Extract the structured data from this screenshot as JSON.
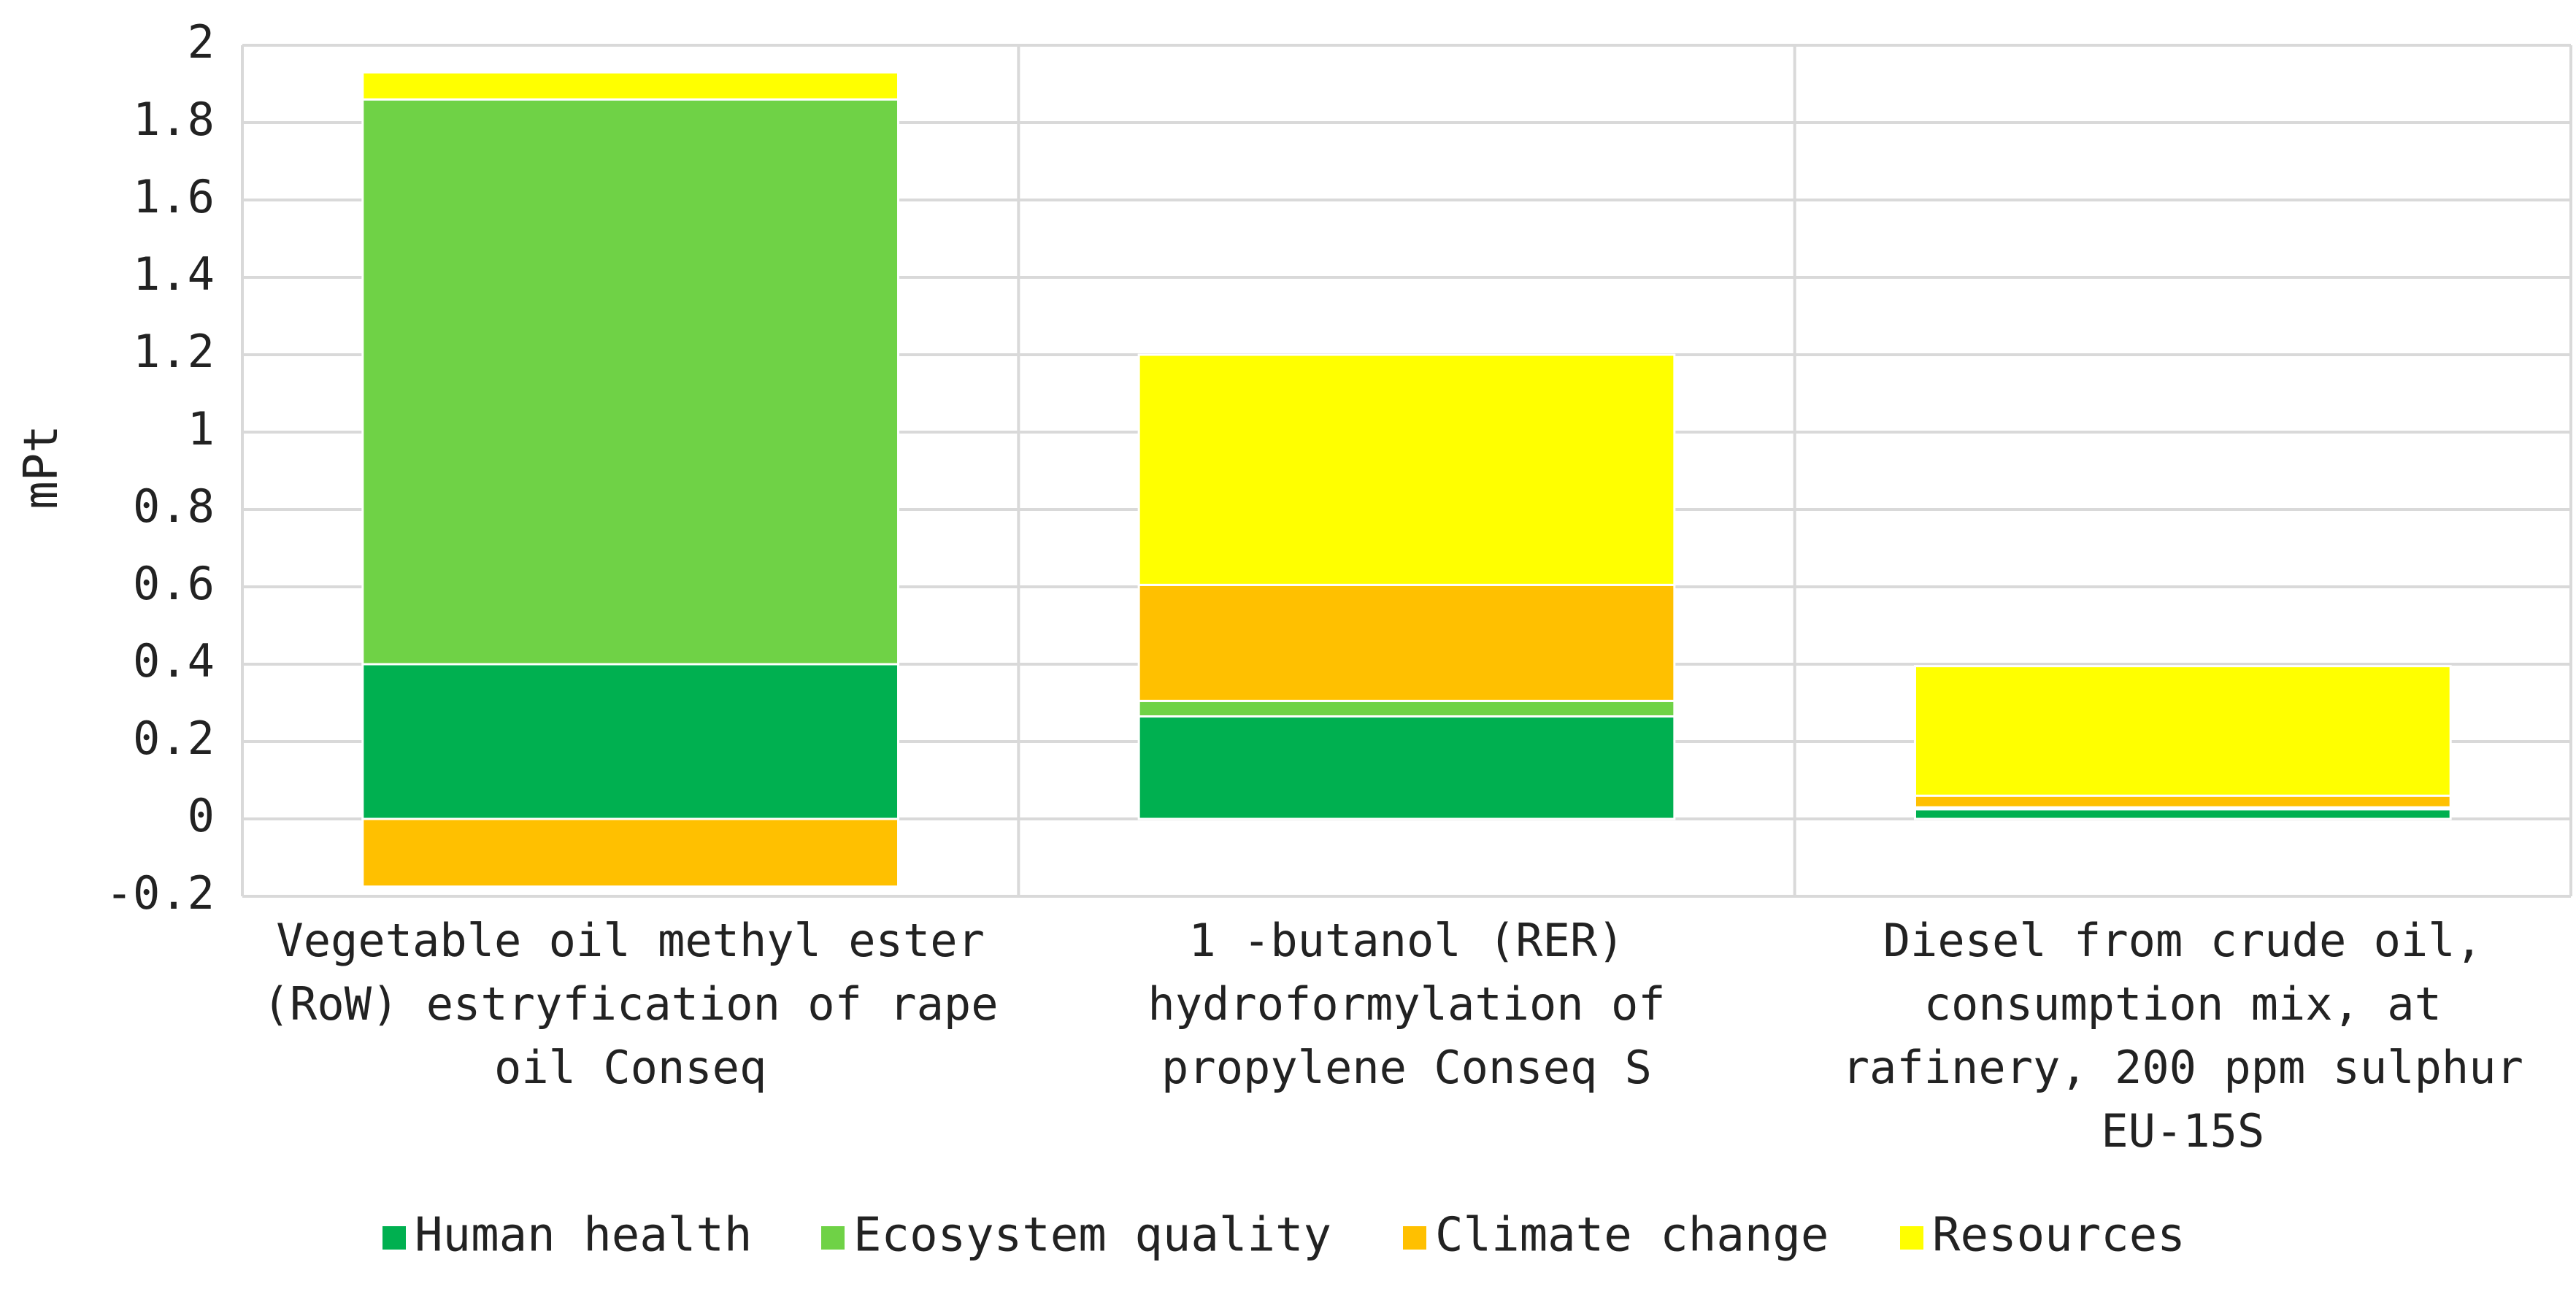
{
  "chart_data": {
    "type": "bar",
    "stacked": true,
    "title": "",
    "xlabel": "",
    "ylabel": "mPt",
    "ylim": [
      -0.2,
      2
    ],
    "yticks": [
      -0.2,
      0,
      0.2,
      0.4,
      0.6,
      0.8,
      1,
      1.2,
      1.4,
      1.6,
      1.8,
      2
    ],
    "ytick_labels": [
      "-0.2",
      "0",
      "0.2",
      "0.4",
      "0.6",
      "0.8",
      "1",
      "1.2",
      "1.4",
      "1.6",
      "1.8",
      "2"
    ],
    "grid": true,
    "legend_position": "bottom",
    "categories": [
      [
        "Vegetable oil methyl ester",
        "(RoW) estryfication of rape",
        "oil Conseq"
      ],
      [
        "1 -butanol (RER)",
        "hydroformylation of",
        "propylene Conseq S"
      ],
      [
        "Diesel from crude oil,",
        "consumption mix, at",
        "rafinery, 200 ppm sulphur",
        "EU-15S"
      ]
    ],
    "series": [
      {
        "name": "Human health",
        "color": "#00b050",
        "values": [
          0.4,
          0.265,
          0.025
        ]
      },
      {
        "name": "Ecosystem quality",
        "color": "#6fd246",
        "values": [
          1.46,
          0.04,
          0.005
        ]
      },
      {
        "name": "Climate change",
        "color": "#ffc000",
        "values": [
          -0.175,
          0.3,
          0.03
        ]
      },
      {
        "name": "Resources",
        "color": "#ffff00",
        "values": [
          0.07,
          0.595,
          0.335
        ]
      }
    ]
  }
}
